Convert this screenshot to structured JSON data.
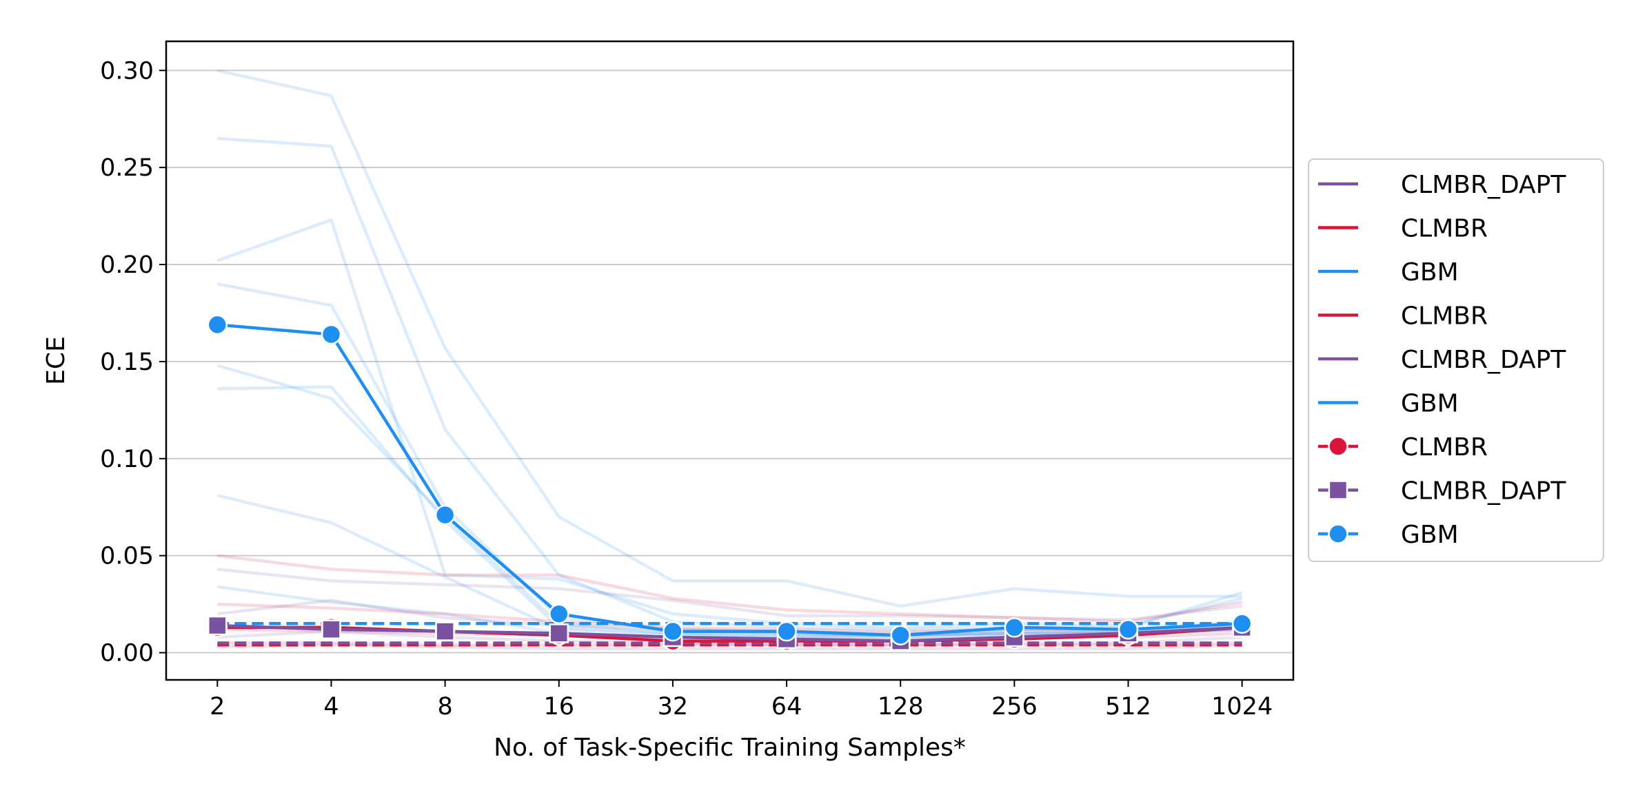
{
  "chart_data": {
    "type": "line",
    "xlabel": "No. of Task-Specific Training Samples*",
    "ylabel": "ECE",
    "x": [
      2,
      4,
      8,
      16,
      32,
      64,
      128,
      256,
      512,
      1024
    ],
    "x_tick_labels": [
      "2",
      "4",
      "8",
      "16",
      "32",
      "64",
      "128",
      "256",
      "512",
      "1024"
    ],
    "y_ticks": [
      0.0,
      0.05,
      0.1,
      0.15,
      0.2,
      0.25,
      0.3
    ],
    "y_tick_labels": [
      "0.00",
      "0.05",
      "0.10",
      "0.15",
      "0.20",
      "0.25",
      "0.30"
    ],
    "ylim": [
      -0.014,
      0.315
    ],
    "x_scale": "log2",
    "grid": "horizontal",
    "legend_position": "right, outside plot",
    "colors": {
      "CLMBR": "#dc143c",
      "CLMBR_DAPT": "#7b52a0",
      "GBM": "#1e8ff0"
    },
    "faint_series": [
      {
        "group": "GBM",
        "values": [
          0.3,
          0.287,
          0.157,
          0.07,
          0.037,
          0.037,
          0.024,
          0.033,
          0.029,
          0.029
        ]
      },
      {
        "group": "GBM",
        "values": [
          0.265,
          0.261,
          0.115,
          0.04,
          0.016,
          0.013,
          0.012,
          0.013,
          0.013,
          0.031
        ]
      },
      {
        "group": "GBM",
        "values": [
          0.202,
          0.223,
          0.04,
          0.038,
          0.02,
          0.015,
          0.013,
          0.015,
          0.014,
          0.028
        ]
      },
      {
        "group": "GBM",
        "values": [
          0.19,
          0.179,
          0.075,
          0.018,
          0.012,
          0.011,
          0.01,
          0.012,
          0.012,
          0.016
        ]
      },
      {
        "group": "GBM",
        "values": [
          0.148,
          0.131,
          0.07,
          0.015,
          0.01,
          0.01,
          0.009,
          0.011,
          0.011,
          0.014
        ]
      },
      {
        "group": "GBM",
        "values": [
          0.136,
          0.137,
          0.068,
          0.013,
          0.01,
          0.009,
          0.009,
          0.01,
          0.01,
          0.013
        ]
      },
      {
        "group": "GBM",
        "values": [
          0.081,
          0.067,
          0.039,
          0.012,
          0.009,
          0.008,
          0.009,
          0.01,
          0.01,
          0.012
        ]
      },
      {
        "group": "GBM",
        "values": [
          0.034,
          0.026,
          0.02,
          0.01,
          0.008,
          0.008,
          0.008,
          0.009,
          0.009,
          0.012
        ]
      },
      {
        "group": "CLMBR",
        "values": [
          0.05,
          0.043,
          0.04,
          0.04,
          0.028,
          0.022,
          0.02,
          0.018,
          0.016,
          0.026
        ]
      },
      {
        "group": "CLMBR",
        "values": [
          0.025,
          0.023,
          0.02,
          0.016,
          0.013,
          0.012,
          0.011,
          0.012,
          0.011,
          0.013
        ]
      },
      {
        "group": "CLMBR",
        "values": [
          0.012,
          0.011,
          0.01,
          0.009,
          0.008,
          0.007,
          0.007,
          0.008,
          0.008,
          0.01
        ]
      },
      {
        "group": "CLMBR",
        "values": [
          0.005,
          0.005,
          0.004,
          0.004,
          0.004,
          0.004,
          0.004,
          0.004,
          0.004,
          0.005
        ]
      },
      {
        "group": "CLMBR_DAPT",
        "values": [
          0.043,
          0.037,
          0.035,
          0.033,
          0.027,
          0.019,
          0.019,
          0.018,
          0.017,
          0.024
        ]
      },
      {
        "group": "CLMBR_DAPT",
        "values": [
          0.02,
          0.027,
          0.018,
          0.014,
          0.012,
          0.01,
          0.009,
          0.01,
          0.01,
          0.012
        ]
      },
      {
        "group": "CLMBR_DAPT",
        "values": [
          0.008,
          0.011,
          0.008,
          0.006,
          0.005,
          0.004,
          0.004,
          0.005,
          0.005,
          0.008
        ]
      },
      {
        "group": "CLMBR_DAPT",
        "values": [
          0.003,
          0.004,
          0.003,
          0.002,
          0.002,
          0.002,
          0.002,
          0.002,
          0.002,
          0.004
        ]
      }
    ],
    "baselines": [
      {
        "group": "CLMBR",
        "value": 0.004,
        "style": "dashed"
      },
      {
        "group": "CLMBR_DAPT",
        "value": 0.005,
        "style": "dashed"
      },
      {
        "group": "GBM",
        "value": 0.015,
        "style": "dashed"
      }
    ],
    "series": [
      {
        "name": "CLMBR",
        "marker": "circle",
        "values": [
          0.013,
          0.013,
          0.011,
          0.009,
          0.006,
          0.006,
          0.006,
          0.007,
          0.009,
          0.013
        ]
      },
      {
        "name": "CLMBR_DAPT",
        "marker": "square",
        "values": [
          0.014,
          0.012,
          0.011,
          0.01,
          0.008,
          0.007,
          0.006,
          0.008,
          0.01,
          0.013
        ]
      },
      {
        "name": "GBM",
        "marker": "circle",
        "values": [
          0.169,
          0.164,
          0.071,
          0.02,
          0.011,
          0.011,
          0.009,
          0.013,
          0.012,
          0.015
        ]
      }
    ],
    "legend": [
      {
        "label": "CLMBR_DAPT",
        "group": "CLMBR_DAPT",
        "marker": "none"
      },
      {
        "label": "CLMBR",
        "group": "CLMBR",
        "marker": "none"
      },
      {
        "label": "GBM",
        "group": "GBM",
        "marker": "none"
      },
      {
        "label": "CLMBR",
        "group": "CLMBR",
        "marker": "none"
      },
      {
        "label": "CLMBR_DAPT",
        "group": "CLMBR_DAPT",
        "marker": "none"
      },
      {
        "label": "GBM",
        "group": "GBM",
        "marker": "none"
      },
      {
        "label": "CLMBR",
        "group": "CLMBR",
        "marker": "circle"
      },
      {
        "label": "CLMBR_DAPT",
        "group": "CLMBR_DAPT",
        "marker": "square"
      },
      {
        "label": "GBM",
        "group": "GBM",
        "marker": "circle"
      }
    ]
  }
}
